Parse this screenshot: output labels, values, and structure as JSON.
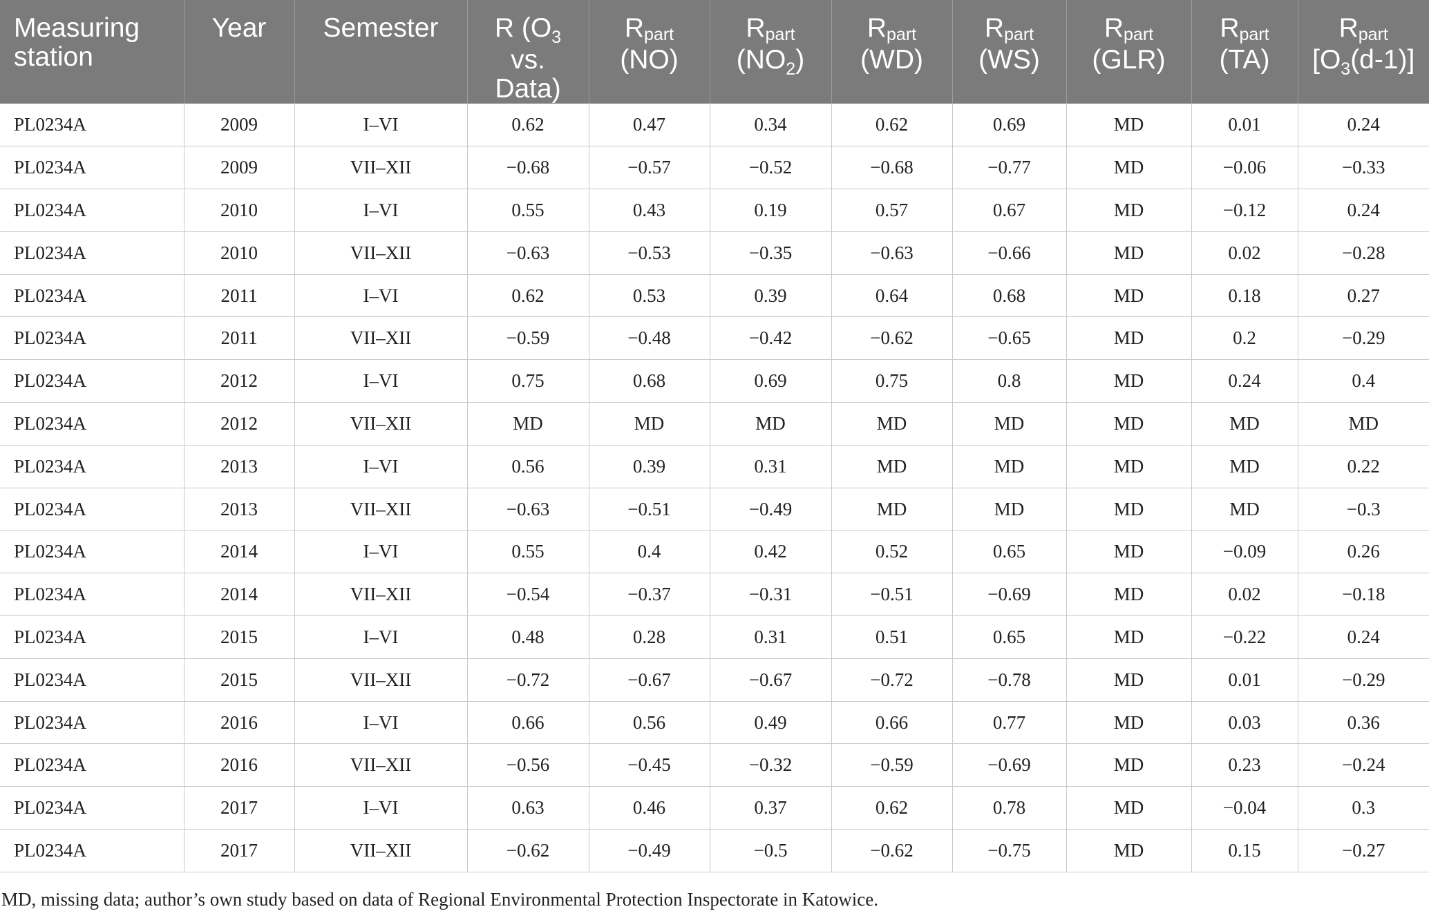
{
  "table": {
    "headers": {
      "station": "Measuring station",
      "year": "Year",
      "semester": "Semester",
      "r": {
        "base": "R (O",
        "sub": "3",
        "tail": " vs. Data)"
      },
      "rpart_base": "R",
      "rpart_sub": "part",
      "no": "(NO)",
      "no2": {
        "pre": "(NO",
        "sub": "2",
        "post": ")"
      },
      "wd": "(WD)",
      "ws": "(WS)",
      "glr": "(GLR)",
      "ta": "(TA)",
      "o3d": {
        "pre": "[O",
        "sub": "3",
        "post": "(d-1)]"
      }
    },
    "rows": [
      [
        "PL0234A",
        "2009",
        "I–VI",
        "0.62",
        "0.47",
        "0.34",
        "0.62",
        "0.69",
        "MD",
        "0.01",
        "0.24"
      ],
      [
        "PL0234A",
        "2009",
        "VII–XII",
        "−0.68",
        "−0.57",
        "−0.52",
        "−0.68",
        "−0.77",
        "MD",
        "−0.06",
        "−0.33"
      ],
      [
        "PL0234A",
        "2010",
        "I–VI",
        "0.55",
        "0.43",
        "0.19",
        "0.57",
        "0.67",
        "MD",
        "−0.12",
        "0.24"
      ],
      [
        "PL0234A",
        "2010",
        "VII–XII",
        "−0.63",
        "−0.53",
        "−0.35",
        "−0.63",
        "−0.66",
        "MD",
        "0.02",
        "−0.28"
      ],
      [
        "PL0234A",
        "2011",
        "I–VI",
        "0.62",
        "0.53",
        "0.39",
        "0.64",
        "0.68",
        "MD",
        "0.18",
        "0.27"
      ],
      [
        "PL0234A",
        "2011",
        "VII–XII",
        "−0.59",
        "−0.48",
        "−0.42",
        "−0.62",
        "−0.65",
        "MD",
        "0.2",
        "−0.29"
      ],
      [
        "PL0234A",
        "2012",
        "I–VI",
        "0.75",
        "0.68",
        "0.69",
        "0.75",
        "0.8",
        "MD",
        "0.24",
        "0.4"
      ],
      [
        "PL0234A",
        "2012",
        "VII–XII",
        "MD",
        "MD",
        "MD",
        "MD",
        "MD",
        "MD",
        "MD",
        "MD"
      ],
      [
        "PL0234A",
        "2013",
        "I–VI",
        "0.56",
        "0.39",
        "0.31",
        "MD",
        "MD",
        "MD",
        "MD",
        "0.22"
      ],
      [
        "PL0234A",
        "2013",
        "VII–XII",
        "−0.63",
        "−0.51",
        "−0.49",
        "MD",
        "MD",
        "MD",
        "MD",
        "−0.3"
      ],
      [
        "PL0234A",
        "2014",
        "I–VI",
        "0.55",
        "0.4",
        "0.42",
        "0.52",
        "0.65",
        "MD",
        "−0.09",
        "0.26"
      ],
      [
        "PL0234A",
        "2014",
        "VII–XII",
        "−0.54",
        "−0.37",
        "−0.31",
        "−0.51",
        "−0.69",
        "MD",
        "0.02",
        "−0.18"
      ],
      [
        "PL0234A",
        "2015",
        "I–VI",
        "0.48",
        "0.28",
        "0.31",
        "0.51",
        "0.65",
        "MD",
        "−0.22",
        "0.24"
      ],
      [
        "PL0234A",
        "2015",
        "VII–XII",
        "−0.72",
        "−0.67",
        "−0.67",
        "−0.72",
        "−0.78",
        "MD",
        "0.01",
        "−0.29"
      ],
      [
        "PL0234A",
        "2016",
        "I–VI",
        "0.66",
        "0.56",
        "0.49",
        "0.66",
        "0.77",
        "MD",
        "0.03",
        "0.36"
      ],
      [
        "PL0234A",
        "2016",
        "VII–XII",
        "−0.56",
        "−0.45",
        "−0.32",
        "−0.59",
        "−0.69",
        "MD",
        "0.23",
        "−0.24"
      ],
      [
        "PL0234A",
        "2017",
        "I–VI",
        "0.63",
        "0.46",
        "0.37",
        "0.62",
        "0.78",
        "MD",
        "−0.04",
        "0.3"
      ],
      [
        "PL0234A",
        "2017",
        "VII–XII",
        "−0.62",
        "−0.49",
        "−0.5",
        "−0.62",
        "−0.75",
        "MD",
        "0.15",
        "−0.27"
      ]
    ]
  },
  "footnote": "MD, missing data; author’s own study based on data of Regional Environmental Protection Inspectorate in Katowice."
}
